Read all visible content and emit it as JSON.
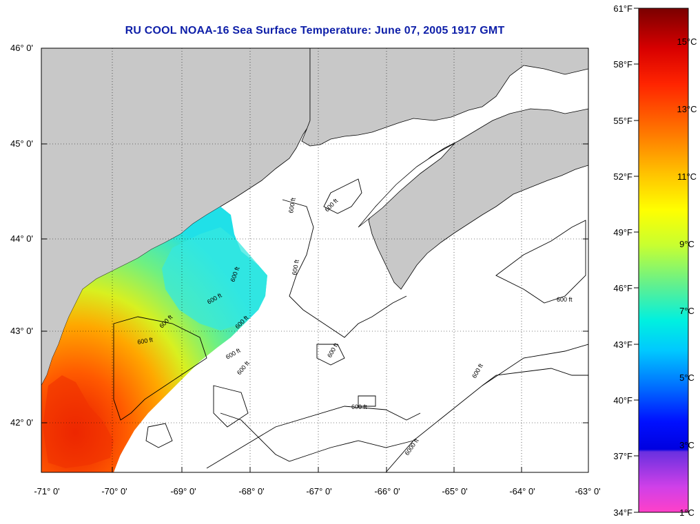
{
  "title": "RU COOL  NOAA-16  Sea Surface Temperature:  June 07, 2005 1917 GMT",
  "latitude_labels": [
    "46° 0'",
    "45° 0'",
    "44° 0'",
    "43° 0'",
    "42° 0'"
  ],
  "longitude_labels": [
    "-71° 0'",
    "-70° 0'",
    "-69° 0'",
    "-68° 0'",
    "-67° 0'",
    "-66° 0'",
    "-65° 0'",
    "-64° 0'",
    "-63° 0'"
  ],
  "colorbar": {
    "fahrenheit_labels": [
      "61°F",
      "58°F",
      "55°F",
      "52°F",
      "49°F",
      "46°F",
      "43°F",
      "40°F",
      "37°F",
      "34°F"
    ],
    "celsius_labels": [
      "15°C",
      "13°C",
      "11°C",
      "9°C",
      "7°C",
      "5°C",
      "3°C",
      "1°C"
    ]
  },
  "contour_labels": [
    "600 ft",
    "600 ft",
    "600 ft",
    "600 ft",
    "600 ft",
    "600 ft",
    "600 ft",
    "600 ft",
    "600 ft",
    "600 ft",
    "600 ft",
    "600 ft",
    "600 ft",
    "600 ft",
    "6000 ft"
  ],
  "colors": {
    "land": "#c8c8c8",
    "water_no_data": "#ffffff",
    "title": "#0d1ea8"
  }
}
